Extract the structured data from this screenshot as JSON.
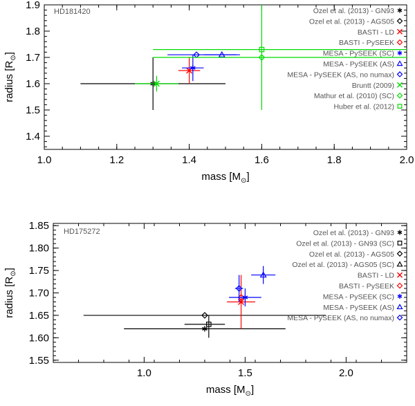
{
  "chart_data": [
    {
      "type": "scatter",
      "star": "HD181420",
      "xlabel": "mass [M",
      "ylabel": "radius [R",
      "label_unit_subscript": "⊙",
      "xlim": [
        1.0,
        2.0
      ],
      "ylim": [
        1.35,
        1.9
      ],
      "xticks": [
        1.0,
        1.2,
        1.4,
        1.6,
        1.8,
        2.0
      ],
      "xtick_labels": [
        "1.0",
        "1.2",
        "1.4",
        "1.6",
        "1.8",
        "2.0"
      ],
      "yticks": [
        1.4,
        1.5,
        1.6,
        1.7,
        1.8,
        1.9
      ],
      "ytick_labels": [
        "1.4",
        "1.5",
        "1.6",
        "1.7",
        "1.8",
        "1.9"
      ],
      "legend_position": "top-right",
      "series": [
        {
          "name": "Ozel et al. (2013) - GN93",
          "color": "#000000",
          "marker": "star",
          "x": 1.3,
          "y": 1.6,
          "xerr": 0.2,
          "yerr": [
            0.1,
            0.1
          ]
        },
        {
          "name": "Ozel et al. (2013) - AGS05",
          "color": "#000000",
          "marker": "diamond",
          "in_plot": false
        },
        {
          "name": "BASTI - LD",
          "color": "#ff0000",
          "marker": "x",
          "x": 1.4,
          "y": 1.65,
          "xerr": 0.03,
          "yerr": [
            0.05,
            0.05
          ]
        },
        {
          "name": "BASTI - PySEEK",
          "color": "#ff0000",
          "marker": "diamond",
          "in_plot": false
        },
        {
          "name": "MESA - PySEEK (SC)",
          "color": "#0000ff",
          "marker": "star",
          "x": 1.41,
          "y": 1.66,
          "xerr": 0.03,
          "yerr": [
            0.05,
            0.05
          ]
        },
        {
          "name": "MESA - PySEEK (AS)",
          "color": "#0000ff",
          "marker": "triangle",
          "x": 1.49,
          "y": 1.71,
          "xerr": 0.05,
          "yerr": [
            0.0,
            0.0
          ]
        },
        {
          "name": "MESA - PySEEK (AS, no numax)",
          "color": "#0000ff",
          "marker": "diamond",
          "x": 1.42,
          "y": 1.71,
          "xerr": [
            0.08,
            0.11
          ],
          "yerr": [
            0.0,
            0.0
          ]
        },
        {
          "name": "Bruntt (2009)",
          "color": "#00dd00",
          "marker": "x",
          "x": 1.31,
          "y": 1.6,
          "xerr": 0.06,
          "yerr": [
            0.03,
            0.03
          ]
        },
        {
          "name": "Mathur et al. (2010) (SC)",
          "color": "#00dd00",
          "marker": "diamond",
          "x": 1.6,
          "y": 1.7,
          "xerr": [
            0.3,
            0.4
          ],
          "yerr": [
            0.0,
            0.0
          ]
        },
        {
          "name": "Huber et al. (2012)",
          "color": "#00dd00",
          "marker": "square",
          "x": 1.6,
          "y": 1.73,
          "xerr": [
            0.3,
            0.4
          ],
          "yerr": [
            0.23,
            0.2
          ]
        }
      ]
    },
    {
      "type": "scatter",
      "star": "HD175272",
      "xlabel": "mass [M",
      "ylabel": "radius [R",
      "label_unit_subscript": "⊙",
      "xlim": [
        0.55,
        2.3
      ],
      "ylim": [
        1.545,
        1.855
      ],
      "xticks": [
        1.0,
        1.5,
        2.0
      ],
      "xtick_labels": [
        "1.0",
        "1.5",
        "2.0"
      ],
      "yticks": [
        1.55,
        1.6,
        1.65,
        1.7,
        1.75,
        1.8,
        1.85
      ],
      "ytick_labels": [
        "1.55",
        "1.60",
        "1.65",
        "1.70",
        "1.75",
        "1.80",
        "1.85"
      ],
      "legend_position": "top-right",
      "series": [
        {
          "name": "Ozel et al. (2013) - GN93",
          "color": "#000000",
          "marker": "star",
          "x": 1.3,
          "y": 1.62,
          "xerr": 0.4,
          "yerr": [
            0.0,
            0.0
          ]
        },
        {
          "name": "Ozel et al. (2013) - GN93 (SC)",
          "color": "#000000",
          "marker": "square",
          "x": 1.32,
          "y": 1.63,
          "xerr": [
            0.12,
            0.08
          ],
          "yerr": [
            0.03,
            0.02
          ]
        },
        {
          "name": "Ozel et al. (2013) - AGS05",
          "color": "#000000",
          "marker": "diamond",
          "x": 1.3,
          "y": 1.65,
          "xerr": [
            0.6,
            0.6
          ],
          "yerr": [
            0.0,
            0.0
          ]
        },
        {
          "name": "Ozel et al. (2013) - AGS05 (SC)",
          "color": "#000000",
          "marker": "triangle",
          "in_plot": false
        },
        {
          "name": "BASTI - LD",
          "color": "#ff0000",
          "marker": "x",
          "x": 1.48,
          "y": 1.68,
          "xerr": 0.07,
          "yerr": [
            0.06,
            0.06
          ]
        },
        {
          "name": "BASTI - PySEEK",
          "color": "#ff0000",
          "marker": "diamond",
          "x": 1.48,
          "y": 1.69,
          "xerr": 0.0,
          "yerr": [
            0.0,
            0.0
          ]
        },
        {
          "name": "MESA - PySEEK (SC)",
          "color": "#0000ff",
          "marker": "star",
          "x": 1.5,
          "y": 1.69,
          "xerr": 0.08,
          "yerr": [
            0.02,
            0.02
          ]
        },
        {
          "name": "MESA - PySEEK (AS)",
          "color": "#0000ff",
          "marker": "triangle",
          "x": 1.59,
          "y": 1.74,
          "xerr": [
            0.06,
            0.06
          ],
          "yerr": [
            0.02,
            0.02
          ]
        },
        {
          "name": "MESA - PySEEK (AS, no numax)",
          "color": "#0000ff",
          "marker": "diamond",
          "x": 1.47,
          "y": 1.71,
          "xerr": [
            0.02,
            0.02
          ],
          "yerr": [
            0.03,
            0.03
          ]
        }
      ]
    }
  ]
}
